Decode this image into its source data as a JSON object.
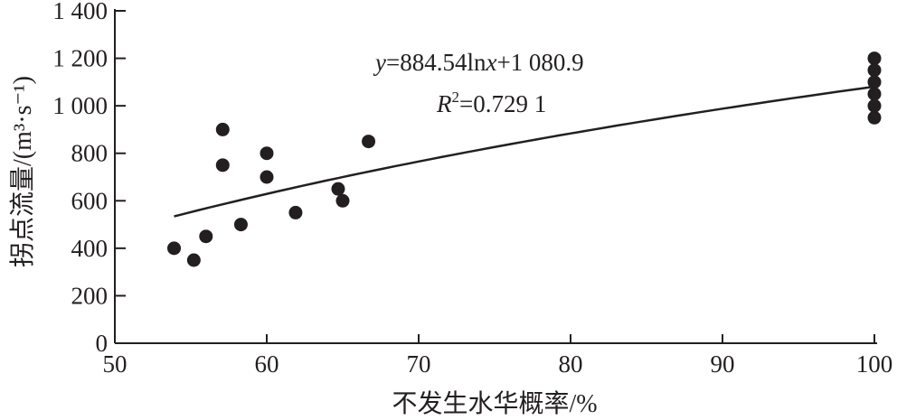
{
  "chart_data": {
    "type": "scatter",
    "xlabel": "不发生水华概率/%",
    "ylabel": "拐点流量/(m³·s⁻¹)",
    "xlim": [
      50,
      100
    ],
    "ylim": [
      0,
      1400
    ],
    "xticks": [
      50,
      60,
      70,
      80,
      90,
      100
    ],
    "yticks": [
      0,
      200,
      400,
      600,
      800,
      1000,
      1200,
      1400
    ],
    "ytick_labels": [
      "0",
      "200",
      "400",
      "600",
      "800",
      "1 000",
      "1 200",
      "1 400"
    ],
    "grid": false,
    "points": [
      {
        "x": 53.9,
        "y": 400
      },
      {
        "x": 55.2,
        "y": 350
      },
      {
        "x": 56.0,
        "y": 450
      },
      {
        "x": 57.1,
        "y": 900
      },
      {
        "x": 57.1,
        "y": 750
      },
      {
        "x": 58.3,
        "y": 500
      },
      {
        "x": 60.0,
        "y": 800
      },
      {
        "x": 60.0,
        "y": 700
      },
      {
        "x": 61.9,
        "y": 550
      },
      {
        "x": 64.7,
        "y": 650
      },
      {
        "x": 65.0,
        "y": 600
      },
      {
        "x": 66.7,
        "y": 850
      },
      {
        "x": 100,
        "y": 1200
      },
      {
        "x": 100,
        "y": 1150
      },
      {
        "x": 100,
        "y": 1100
      },
      {
        "x": 100,
        "y": 1050
      },
      {
        "x": 100,
        "y": 1000
      },
      {
        "x": 100,
        "y": 950
      }
    ],
    "trendline": {
      "type": "log",
      "a": 884.54,
      "b": 1080.9,
      "x_range": [
        53.9,
        100
      ]
    },
    "annotations": {
      "equation_y": "y",
      "equation_rest": "=884.54ln",
      "equation_x": "x",
      "equation_tail": "+1 080.9",
      "r2_r": "R",
      "r2_sup": "2",
      "r2_value": "=0.729 1"
    },
    "colors": {
      "marker": "#231f20",
      "line": "#231f20"
    }
  }
}
